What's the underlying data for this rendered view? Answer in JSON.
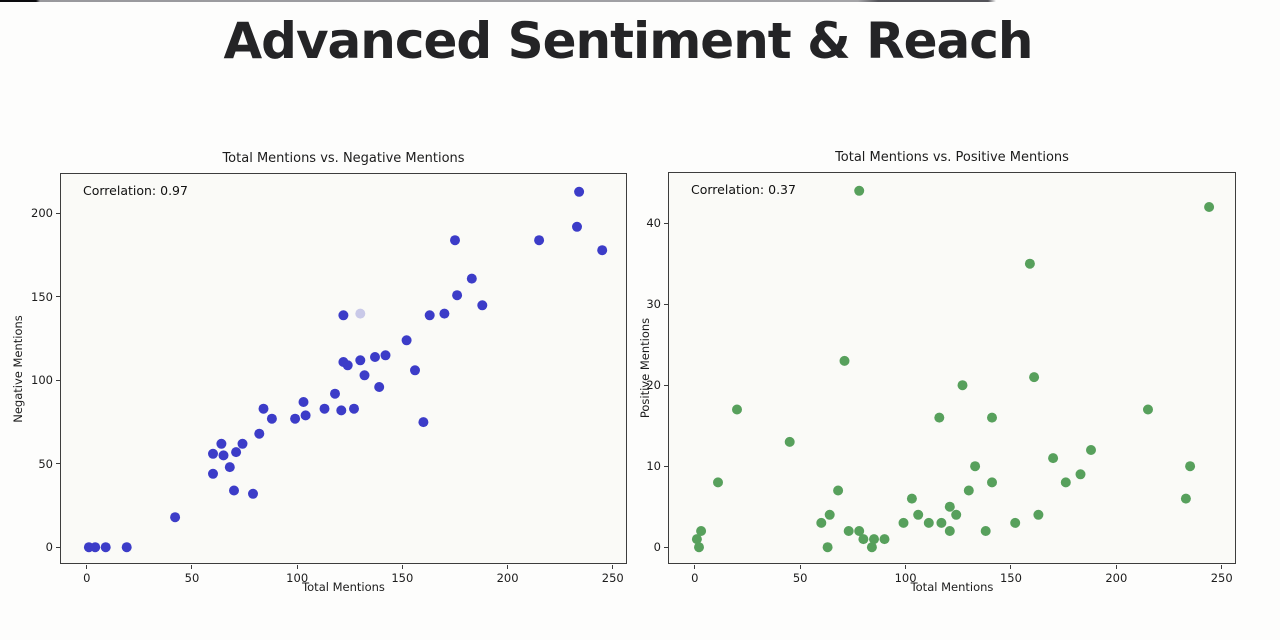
{
  "page": {
    "title": "Advanced Sentiment & Reach"
  },
  "chart_data": [
    {
      "type": "scatter",
      "title": "Total Mentions vs. Negative Mentions",
      "annotation": "Correlation: 0.97",
      "xlabel": "Total Mentions",
      "ylabel": "Negative Mentions",
      "dot_color": "#3c3cc8",
      "outlier_color": "#c9c9e8",
      "x_ticks": [
        0,
        50,
        100,
        150,
        200,
        250
      ],
      "y_ticks": [
        0,
        50,
        100,
        150,
        200
      ],
      "xlim": [
        -12.25,
        257.25
      ],
      "ylim": [
        -10.65,
        223.65
      ],
      "grid": false,
      "legend": null,
      "points": [
        [
          1,
          0
        ],
        [
          4,
          0
        ],
        [
          9,
          0
        ],
        [
          19,
          0
        ],
        [
          42,
          18
        ],
        [
          60,
          44
        ],
        [
          68,
          48
        ],
        [
          60,
          56
        ],
        [
          65,
          55
        ],
        [
          71,
          57
        ],
        [
          64,
          62
        ],
        [
          74,
          62
        ],
        [
          82,
          68
        ],
        [
          70,
          34
        ],
        [
          79,
          32
        ],
        [
          84,
          83
        ],
        [
          88,
          77
        ],
        [
          99,
          77
        ],
        [
          103,
          87
        ],
        [
          104,
          79
        ],
        [
          113,
          83
        ],
        [
          118,
          92
        ],
        [
          121,
          82
        ],
        [
          127,
          83
        ],
        [
          122,
          111
        ],
        [
          124,
          109
        ],
        [
          130,
          112
        ],
        [
          132,
          103
        ],
        [
          137,
          114
        ],
        [
          142,
          115
        ],
        [
          139,
          96
        ],
        [
          122,
          139
        ],
        [
          152,
          124
        ],
        [
          156,
          106
        ],
        [
          160,
          75
        ],
        [
          163,
          139
        ],
        [
          170,
          140
        ],
        [
          175,
          184
        ],
        [
          176,
          151
        ],
        [
          183,
          161
        ],
        [
          188,
          145
        ],
        [
          215,
          184
        ],
        [
          233,
          192
        ],
        [
          234,
          213
        ],
        [
          245,
          178
        ]
      ],
      "faint_points": [
        [
          130,
          140
        ]
      ]
    },
    {
      "type": "scatter",
      "title": "Total Mentions vs. Positive Mentions",
      "annotation": "Correlation: 0.37",
      "xlabel": "Total Mentions",
      "ylabel": "Positive Mentions",
      "dot_color": "#57a05c",
      "outlier_color": "#c9e0c9",
      "x_ticks": [
        0,
        50,
        100,
        150,
        200,
        250
      ],
      "y_ticks": [
        0,
        10,
        20,
        30,
        40
      ],
      "xlim": [
        -12.25,
        257.25
      ],
      "ylim": [
        -2.2,
        46.2
      ],
      "grid": false,
      "legend": null,
      "points": [
        [
          1,
          1
        ],
        [
          2,
          0
        ],
        [
          3,
          2
        ],
        [
          11,
          8
        ],
        [
          20,
          17
        ],
        [
          45,
          13
        ],
        [
          60,
          3
        ],
        [
          63,
          0
        ],
        [
          64,
          4
        ],
        [
          68,
          7
        ],
        [
          73,
          2
        ],
        [
          78,
          2
        ],
        [
          80,
          1
        ],
        [
          84,
          0
        ],
        [
          85,
          1
        ],
        [
          90,
          1
        ],
        [
          71,
          23
        ],
        [
          78,
          44
        ],
        [
          99,
          3
        ],
        [
          103,
          6
        ],
        [
          106,
          4
        ],
        [
          111,
          3
        ],
        [
          117,
          3
        ],
        [
          121,
          5
        ],
        [
          124,
          4
        ],
        [
          121,
          2
        ],
        [
          116,
          16
        ],
        [
          127,
          20
        ],
        [
          130,
          7
        ],
        [
          133,
          10
        ],
        [
          138,
          2
        ],
        [
          141,
          16
        ],
        [
          141,
          8
        ],
        [
          152,
          3
        ],
        [
          159,
          35
        ],
        [
          161,
          21
        ],
        [
          163,
          4
        ],
        [
          170,
          11
        ],
        [
          176,
          8
        ],
        [
          183,
          9
        ],
        [
          188,
          12
        ],
        [
          215,
          17
        ],
        [
          233,
          6
        ],
        [
          235,
          10
        ],
        [
          244,
          42
        ]
      ],
      "faint_points": []
    }
  ]
}
